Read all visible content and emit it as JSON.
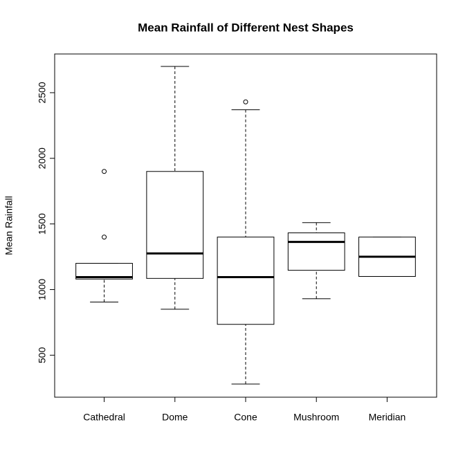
{
  "chart_data": {
    "type": "boxplot",
    "title": "Mean Rainfall of Different Nest Shapes",
    "y_label": "Mean Rainfall",
    "categories": [
      "Cathedral",
      "Dome",
      "Cone",
      "Mushroom",
      "Meridian"
    ],
    "min": [
      905,
      850,
      280,
      930,
      1100
    ],
    "q1": [
      1080,
      1085,
      735,
      1147,
      1100
    ],
    "median": [
      1095,
      1275,
      1095,
      1363,
      1250
    ],
    "q3": [
      1200,
      1900,
      1400,
      1432,
      1400
    ],
    "max": [
      1200,
      2700,
      2370,
      1510,
      1400
    ],
    "outliers": [
      [
        1400,
        1900
      ],
      [],
      [
        2430
      ],
      [],
      []
    ],
    "ylim": [
      180,
      2795
    ],
    "yticks": [
      500,
      1000,
      1500,
      2000,
      2500
    ],
    "color": "#000000"
  }
}
